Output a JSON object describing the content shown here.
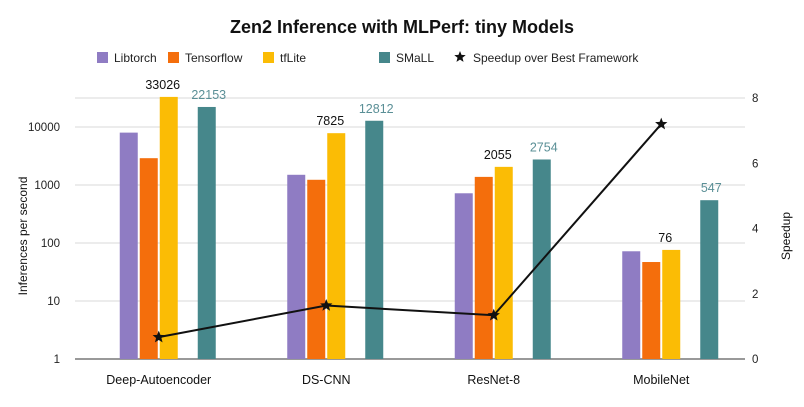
{
  "chart_data": {
    "type": "bar",
    "title": "Zen2 Inference with MLPerf: tiny Models",
    "ylabel": "Inferences per second",
    "y2label": "Speedup",
    "yscale": "log",
    "ylim": [
      1,
      60000
    ],
    "y2lim": [
      0,
      8
    ],
    "yticks": [
      "1",
      "10",
      "100",
      "1000",
      "10000"
    ],
    "y2ticks": [
      "0",
      "2",
      "4",
      "6",
      "8"
    ],
    "categories": [
      "Deep-Autoencoder",
      "DS-CNN",
      "ResNet-8",
      "MobileNet"
    ],
    "series": [
      {
        "name": "Libtorch",
        "color": "#8f7cc3",
        "values": [
          8000,
          1500,
          720,
          72
        ]
      },
      {
        "name": "Tensorflow",
        "color": "#f46e0c",
        "values": [
          2900,
          1230,
          1380,
          47
        ]
      },
      {
        "name": "tfLite",
        "color": "#fbbc05",
        "values": [
          33026,
          7825,
          2055,
          76
        ],
        "labels": [
          "33026",
          "7825",
          "2055",
          "76"
        ],
        "label_color": "#111111"
      },
      {
        "name": "SMaLL",
        "color": "#46878b",
        "values": [
          22153,
          12812,
          2754,
          547
        ],
        "labels": [
          "22153",
          "12812",
          "2754",
          "547"
        ],
        "label_color": "#5a8f96"
      }
    ],
    "line_series": {
      "name": "Speedup over Best Framework",
      "axis": "right",
      "color": "#111111",
      "marker": "star",
      "values": [
        0.67,
        1.64,
        1.34,
        7.2
      ]
    },
    "legend_position": "top",
    "grid": true
  }
}
